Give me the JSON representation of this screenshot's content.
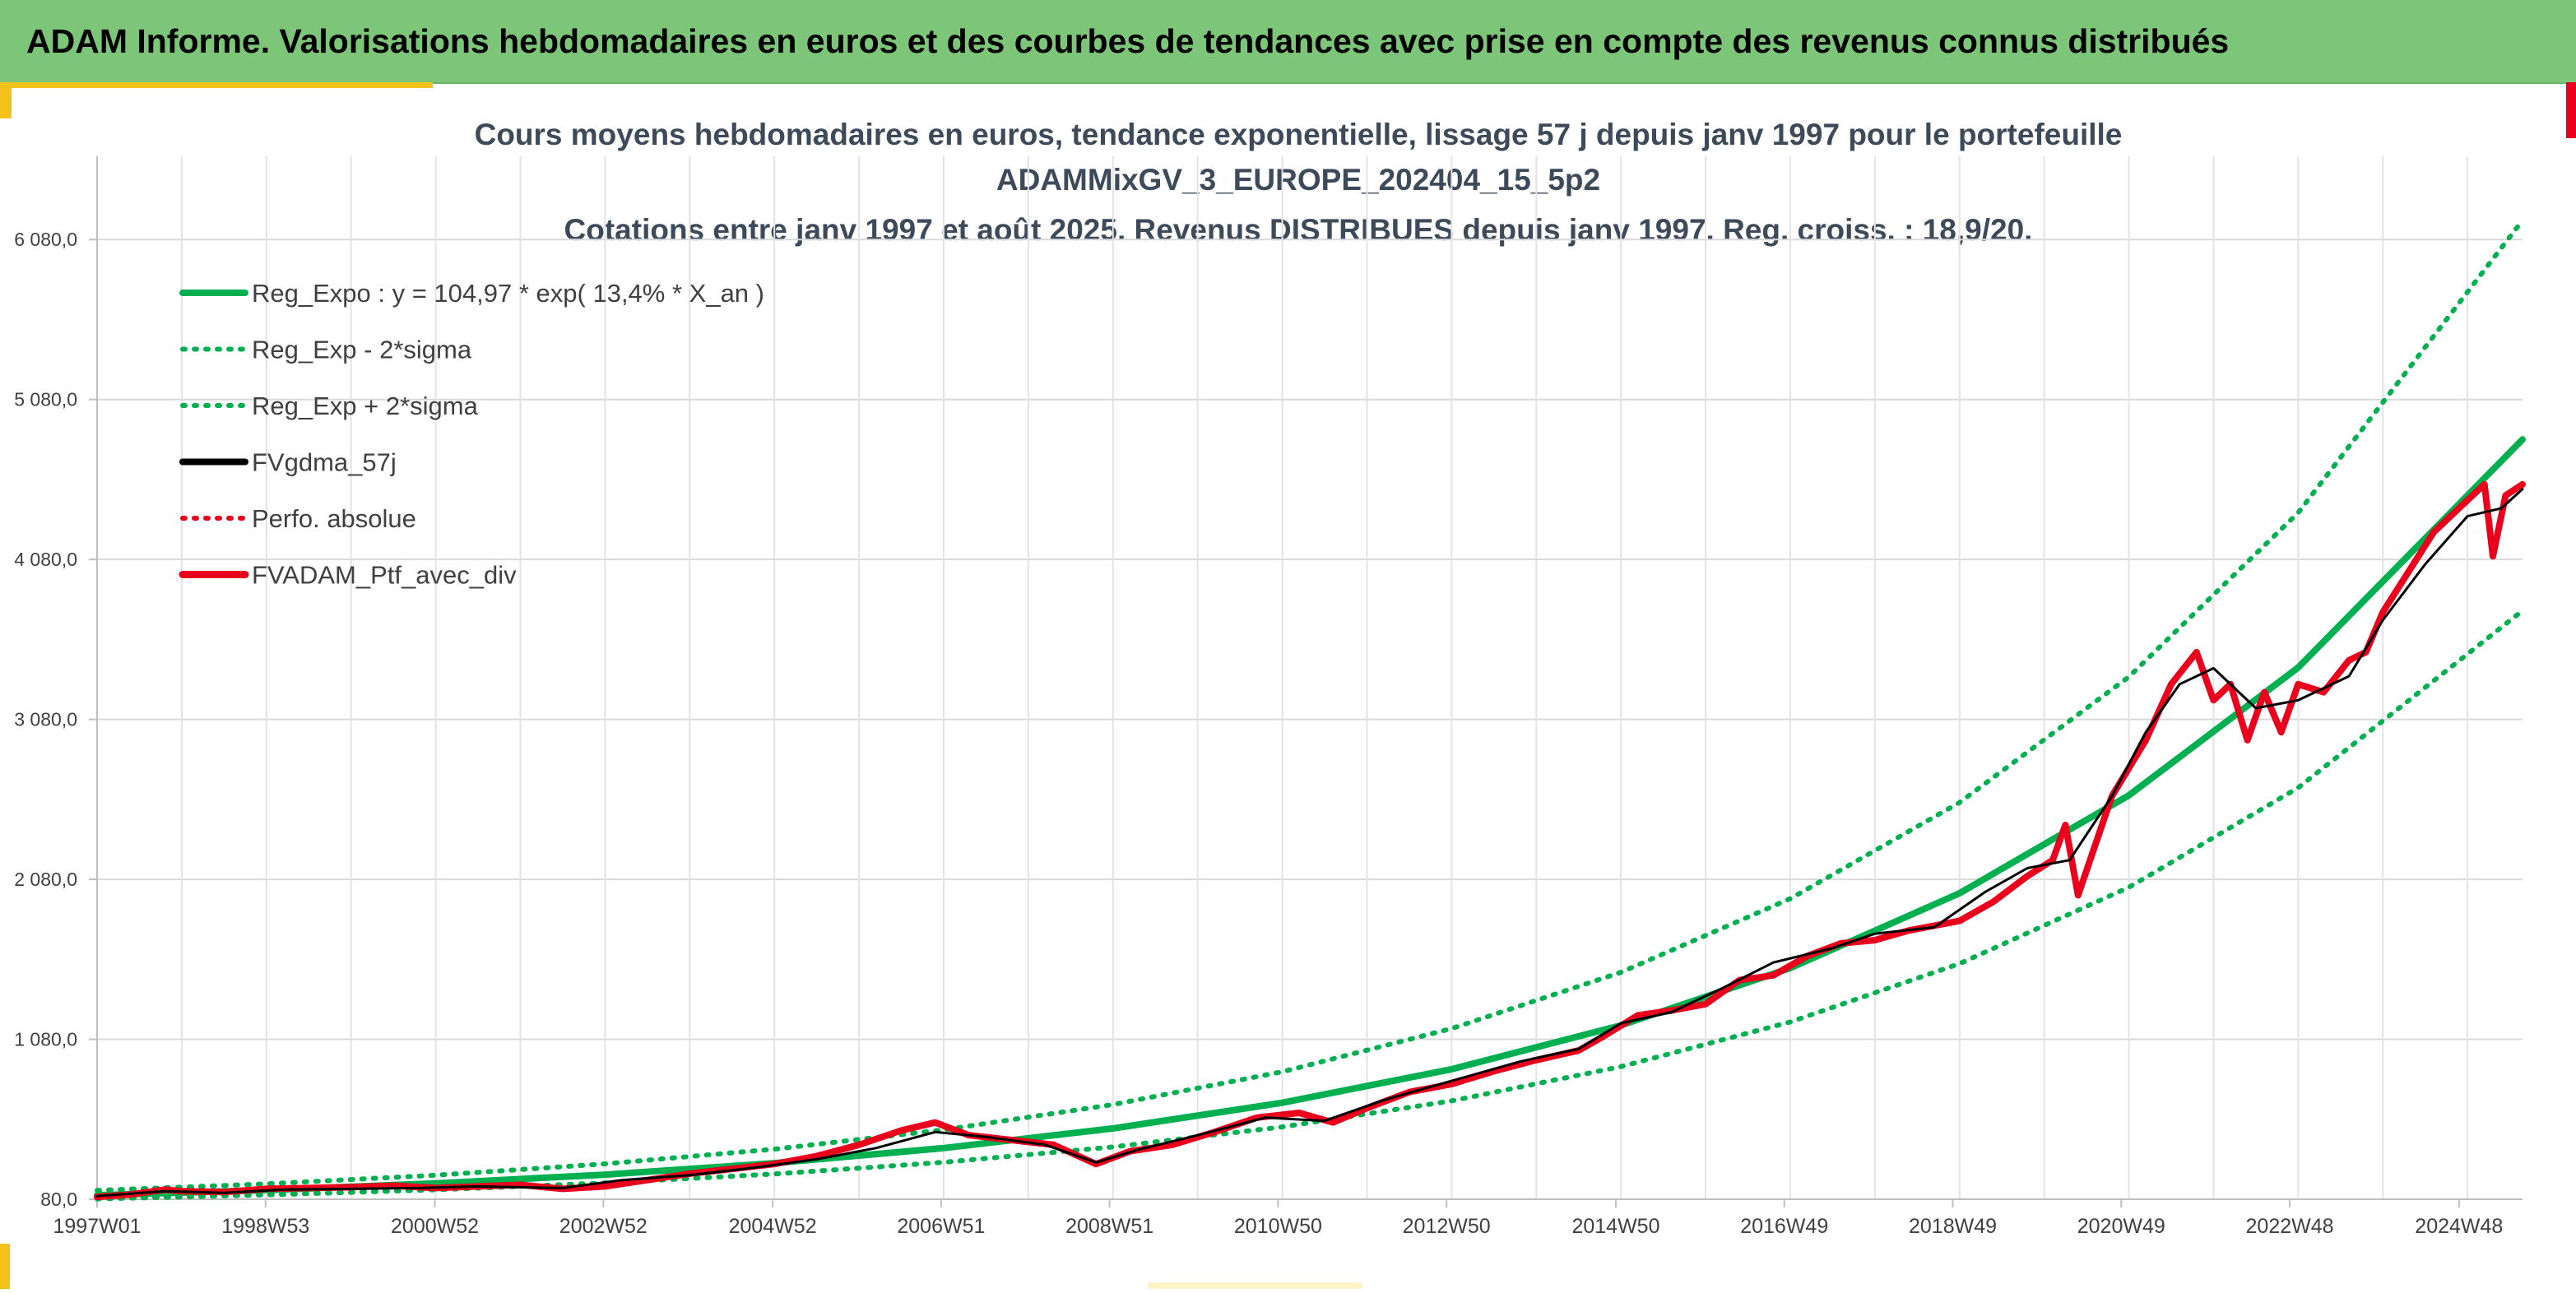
{
  "banner": {
    "title": "ADAM Informe. Valorisations hebdomadaires en euros et des courbes de tendances avec prise en compte des revenus connus distribués"
  },
  "colors": {
    "banner_bg": "#7dc679",
    "trend": "#00b050",
    "sigma": "#00b050",
    "fvgdma": "#000000",
    "perfo": "#e8001c",
    "ptf": "#e8001c",
    "title_text": "#3c4a5a"
  },
  "chart_data": {
    "type": "line",
    "title_lines": [
      "Cours moyens hebdomadaires en euros, tendance exponentielle, lissage 57 j depuis janv 1997 pour le portefeuille",
      "ADAMMixGV_3_EUROPE_202404_15_5p2",
      "Cotations entre janv 1997 et août 2025. Revenus DISTRIBUES depuis janv 1997. Reg. croiss. : 18,9/20."
    ],
    "x_range": [
      1997.0,
      2025.65
    ],
    "x_ticks": [
      {
        "label": "1997W01",
        "x": 1997.0
      },
      {
        "label": "1998W53",
        "x": 1998.99
      },
      {
        "label": "2000W52",
        "x": 2000.99
      },
      {
        "label": "2002W52",
        "x": 2002.98
      },
      {
        "label": "2004W52",
        "x": 2004.98
      },
      {
        "label": "2006W51",
        "x": 2006.97
      },
      {
        "label": "2008W51",
        "x": 2008.96
      },
      {
        "label": "2010W50",
        "x": 2010.95
      },
      {
        "label": "2012W50",
        "x": 2012.94
      },
      {
        "label": "2014W50",
        "x": 2014.94
      },
      {
        "label": "2016W49",
        "x": 2016.93
      },
      {
        "label": "2018W49",
        "x": 2018.92
      },
      {
        "label": "2020W49",
        "x": 2020.91
      },
      {
        "label": "2022W48",
        "x": 2022.9
      },
      {
        "label": "2024W48",
        "x": 2024.9
      }
    ],
    "ylim": [
      80,
      6580
    ],
    "y_ticks": [
      {
        "label": "80,0",
        "v": 80
      },
      {
        "label": "1 080,0",
        "v": 1080
      },
      {
        "label": "2 080,0",
        "v": 2080
      },
      {
        "label": "3 080,0",
        "v": 3080
      },
      {
        "label": "4 080,0",
        "v": 4080
      },
      {
        "label": "5 080,0",
        "v": 5080
      },
      {
        "label": "6 080,0",
        "v": 6080
      }
    ],
    "grid": true,
    "legend_position": "top-left",
    "series": [
      {
        "name": "Reg_Expo : y = 104,97 * exp( 13,4% *  X_an )",
        "style": "solid",
        "color": "#00b050",
        "x": [
          1997.0,
          1999.0,
          2001.0,
          2003.0,
          2005.0,
          2007.0,
          2009.0,
          2011.0,
          2013.0,
          2015.0,
          2017.0,
          2019.0,
          2021.0,
          2023.0,
          2025.65
        ],
        "y": [
          105,
          137,
          179,
          234,
          306,
          400,
          523,
          683,
          893,
          1167,
          1525,
          1993,
          2605,
          3404,
          4830
        ]
      },
      {
        "name": "Reg_Exp - 2*sigma",
        "style": "dotted",
        "color": "#00b050",
        "x": [
          1997.0,
          1999.0,
          2001.0,
          2003.0,
          2005.0,
          2007.0,
          2009.0,
          2011.0,
          2013.0,
          2015.0,
          2017.0,
          2019.0,
          2021.0,
          2023.0,
          2025.65
        ],
        "y": [
          82,
          107,
          139,
          182,
          238,
          311,
          407,
          532,
          695,
          909,
          1188,
          1553,
          2030,
          2653,
          3760
        ]
      },
      {
        "name": "Reg_Exp + 2*sigma",
        "style": "dotted",
        "color": "#00b050",
        "x": [
          1997.0,
          1999.0,
          2001.0,
          2003.0,
          2005.0,
          2007.0,
          2009.0,
          2011.0,
          2013.0,
          2015.0,
          2017.0,
          2019.0,
          2021.0,
          2023.0,
          2025.65
        ],
        "y": [
          135,
          176,
          230,
          301,
          393,
          514,
          672,
          877,
          1147,
          1499,
          1959,
          2560,
          3346,
          4372,
          6200
        ]
      },
      {
        "name": "FVgdma_57j",
        "style": "solid",
        "color": "#000000",
        "x": [
          1997.0,
          1997.8,
          1998.5,
          1999.2,
          2000.0,
          2000.8,
          2001.5,
          2002.5,
          2003.2,
          2004.0,
          2004.8,
          2005.5,
          2006.2,
          2006.9,
          2007.5,
          2008.2,
          2008.8,
          2009.3,
          2010.0,
          2010.8,
          2011.5,
          2012.2,
          2013.0,
          2013.8,
          2014.5,
          2015.0,
          2015.6,
          2016.2,
          2016.8,
          2017.5,
          2018.0,
          2018.7,
          2019.3,
          2019.8,
          2020.3,
          2020.8,
          2021.2,
          2021.6,
          2022.0,
          2022.5,
          2023.0,
          2023.6,
          2024.0,
          2024.5,
          2025.0,
          2025.4,
          2025.65
        ],
        "y": [
          100,
          130,
          120,
          140,
          145,
          150,
          160,
          150,
          200,
          230,
          280,
          330,
          400,
          500,
          470,
          420,
          310,
          390,
          480,
          590,
          570,
          700,
          820,
          940,
          1020,
          1180,
          1250,
          1400,
          1560,
          1650,
          1740,
          1780,
          2000,
          2150,
          2200,
          2600,
          3000,
          3300,
          3400,
          3150,
          3200,
          3350,
          3700,
          4050,
          4350,
          4400,
          4520
        ]
      },
      {
        "name": "Perfo. absolue",
        "style": "dotted",
        "color": "#e8001c",
        "x": [],
        "y": []
      },
      {
        "name": "FVADAM_Ptf_avec_div",
        "style": "solid",
        "color": "#e8001c",
        "x": [
          1997.0,
          1997.4,
          1997.8,
          1998.0,
          1998.5,
          1999.0,
          1999.5,
          2000.0,
          2000.5,
          2001.0,
          2001.5,
          2002.0,
          2002.5,
          2003.0,
          2003.5,
          2004.0,
          2004.5,
          2005.0,
          2005.5,
          2006.0,
          2006.5,
          2006.9,
          2007.3,
          2007.8,
          2008.3,
          2008.8,
          2009.2,
          2009.7,
          2010.2,
          2010.7,
          2011.2,
          2011.6,
          2012.0,
          2012.5,
          2013.0,
          2013.5,
          2014.0,
          2014.5,
          2014.8,
          2015.2,
          2015.6,
          2016.0,
          2016.4,
          2016.8,
          2017.2,
          2017.6,
          2018.0,
          2018.4,
          2018.8,
          2019.0,
          2019.4,
          2019.8,
          2020.1,
          2020.25,
          2020.4,
          2020.8,
          2021.2,
          2021.5,
          2021.8,
          2022.0,
          2022.2,
          2022.4,
          2022.6,
          2022.8,
          2023.0,
          2023.3,
          2023.6,
          2023.8,
          2024.0,
          2024.3,
          2024.6,
          2024.9,
          2025.2,
          2025.3,
          2025.45,
          2025.65
        ],
        "y": [
          95,
          110,
          140,
          130,
          125,
          145,
          150,
          155,
          165,
          150,
          160,
          170,
          145,
          160,
          200,
          240,
          270,
          300,
          350,
          420,
          510,
          560,
          480,
          450,
          420,
          300,
          380,
          420,
          500,
          590,
          620,
          560,
          650,
          750,
          800,
          880,
          950,
          1010,
          1100,
          1230,
          1260,
          1300,
          1450,
          1480,
          1600,
          1680,
          1700,
          1760,
          1800,
          1820,
          1940,
          2100,
          2200,
          2420,
          1980,
          2600,
          2950,
          3300,
          3500,
          3200,
          3300,
          2950,
          3250,
          3000,
          3300,
          3250,
          3450,
          3500,
          3750,
          4000,
          4250,
          4400,
          4550,
          4100,
          4480,
          4550
        ]
      }
    ]
  }
}
